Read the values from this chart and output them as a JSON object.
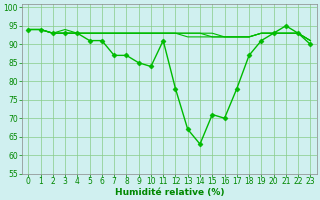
{
  "x": [
    0,
    1,
    2,
    3,
    4,
    5,
    6,
    7,
    8,
    9,
    10,
    11,
    12,
    13,
    14,
    15,
    16,
    17,
    18,
    19,
    20,
    21,
    22,
    23
  ],
  "series": [
    [
      94,
      94,
      93,
      93,
      93,
      91,
      91,
      87,
      87,
      85,
      84,
      91,
      78,
      67,
      63,
      71,
      70,
      78,
      87,
      91,
      93,
      95,
      93,
      90
    ],
    [
      94,
      94,
      93,
      94,
      93,
      93,
      93,
      93,
      93,
      93,
      93,
      93,
      93,
      93,
      93,
      93,
      92,
      92,
      92,
      93,
      93,
      93,
      93,
      91
    ],
    [
      94,
      94,
      93,
      93,
      93,
      93,
      93,
      93,
      93,
      93,
      93,
      93,
      93,
      93,
      93,
      92,
      92,
      92,
      92,
      93,
      93,
      93,
      93,
      91
    ],
    [
      94,
      94,
      93,
      93,
      93,
      93,
      93,
      93,
      93,
      93,
      93,
      93,
      93,
      92,
      92,
      92,
      92,
      92,
      92,
      93,
      93,
      93,
      93,
      91
    ]
  ],
  "line_color": "#00bb00",
  "marker_color": "#00bb00",
  "bg_color": "#d0f0f0",
  "grid_color": "#88cc88",
  "axis_color": "#008800",
  "xlabel": "Humidité relative (%)",
  "ylim": [
    55,
    101
  ],
  "xlim": [
    -0.5,
    23.5
  ],
  "yticks": [
    55,
    60,
    65,
    70,
    75,
    80,
    85,
    90,
    95,
    100
  ],
  "xticks": [
    0,
    1,
    2,
    3,
    4,
    5,
    6,
    7,
    8,
    9,
    10,
    11,
    12,
    13,
    14,
    15,
    16,
    17,
    18,
    19,
    20,
    21,
    22,
    23
  ],
  "tick_fontsize": 5.5,
  "xlabel_fontsize": 6.5
}
